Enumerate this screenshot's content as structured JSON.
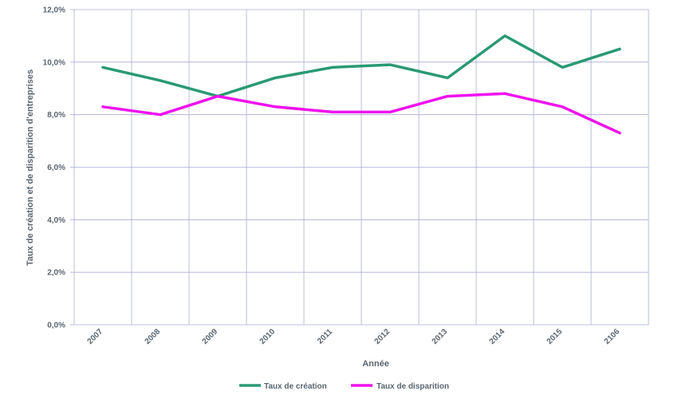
{
  "chart_data": {
    "type": "line",
    "categories": [
      "2007",
      "2008",
      "2009",
      "2010",
      "2011",
      "2012",
      "2013",
      "2014",
      "2015",
      "2106"
    ],
    "series": [
      {
        "name": "Taux de création",
        "color": "#2a9a73",
        "values": [
          9.8,
          9.3,
          8.7,
          9.4,
          9.8,
          9.9,
          9.4,
          11.0,
          9.8,
          10.5
        ]
      },
      {
        "name": "Taux de disparition",
        "color": "#ee11ee",
        "values": [
          8.3,
          8.0,
          8.7,
          8.3,
          8.1,
          8.1,
          8.7,
          8.8,
          8.3,
          7.3
        ]
      }
    ],
    "yticks": [
      "0,0%",
      "2,0%",
      "4,0%",
      "6,0%",
      "8,0%",
      "10,0%",
      "12,0%"
    ],
    "ylim": [
      0,
      12
    ],
    "xlabel": "Année",
    "ylabel": "Taux de création et de disparition d'entreprises",
    "grid": true,
    "legend": "bottom-center"
  }
}
